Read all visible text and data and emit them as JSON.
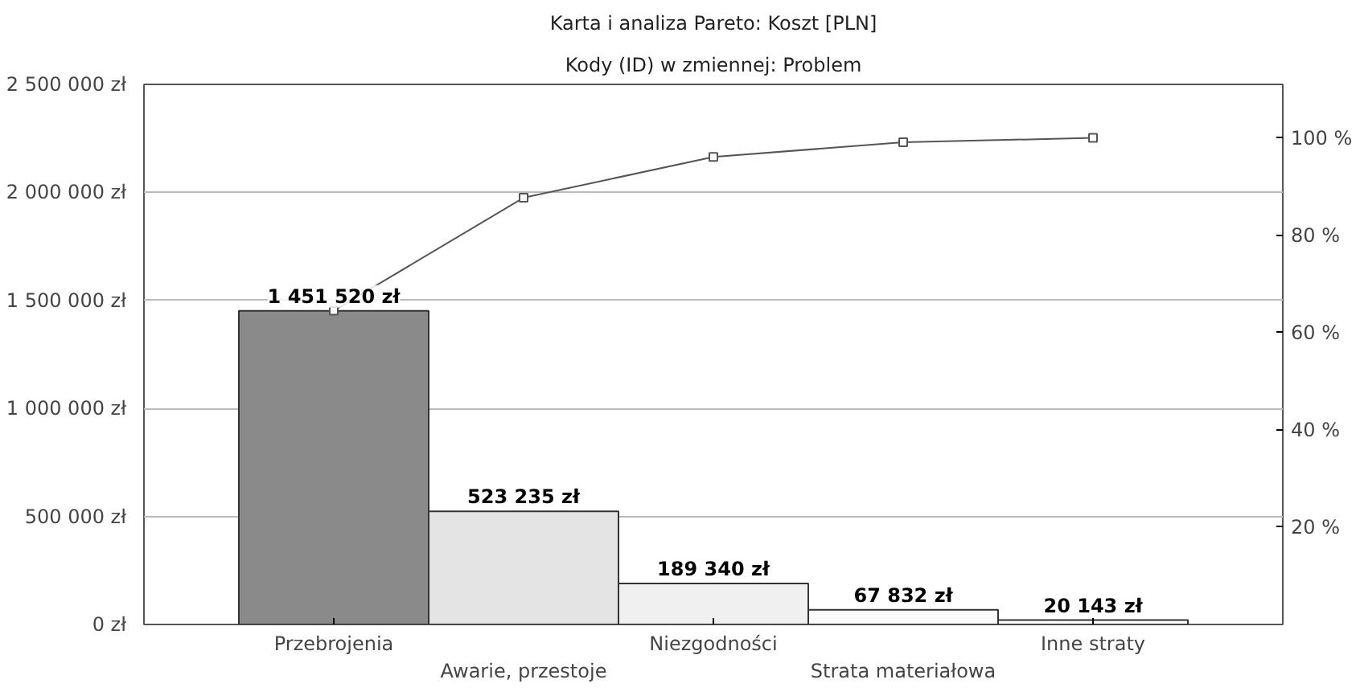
{
  "chart_data": {
    "type": "bar",
    "title": "Karta i analiza Pareto: Koszt [PLN]",
    "subtitle": "Kody (ID) w zmiennej: Problem",
    "categories": [
      "Przebrojenia",
      "Awarie, przestoje",
      "Niezgodności",
      "Strata materiałowa",
      "Inne straty"
    ],
    "series": [
      {
        "values": [
          1451520,
          523235,
          189340,
          67832,
          20143
        ],
        "colors": [
          "#8a8a8a",
          "#e4e4e4",
          "#f0f0f0",
          "#fafafa",
          "#ffffff"
        ]
      },
      {
        "type": "line",
        "axis": "y2",
        "color": "#555555",
        "marker": "square",
        "values": [
          64.5,
          87.7,
          96.1,
          99.1,
          100
        ]
      }
    ],
    "value_labels": [
      "1 451 520 zł",
      "523 235 zł",
      "189 340 zł",
      "67 832 zł",
      "20 143 zł"
    ],
    "ylim": [
      0,
      2500000
    ],
    "yticks": [
      {
        "value": 0,
        "label": "0 zł"
      },
      {
        "value": 500000,
        "label": "500 000 zł"
      },
      {
        "value": 1000000,
        "label": "1 000 000 zł"
      },
      {
        "value": 1500000,
        "label": "1 500 000 zł"
      },
      {
        "value": 2000000,
        "label": "2 000 000 zł"
      },
      {
        "value": 2500000,
        "label": "2 500 000 zł"
      }
    ],
    "y2lim": [
      0,
      111
    ],
    "y2ticks": [
      {
        "value": 20,
        "label": "20 %"
      },
      {
        "value": 40,
        "label": "40 %"
      },
      {
        "value": 60,
        "label": "60 %"
      },
      {
        "value": 80,
        "label": "80 %"
      },
      {
        "value": 100,
        "label": "100 %"
      }
    ],
    "grid": "y"
  }
}
